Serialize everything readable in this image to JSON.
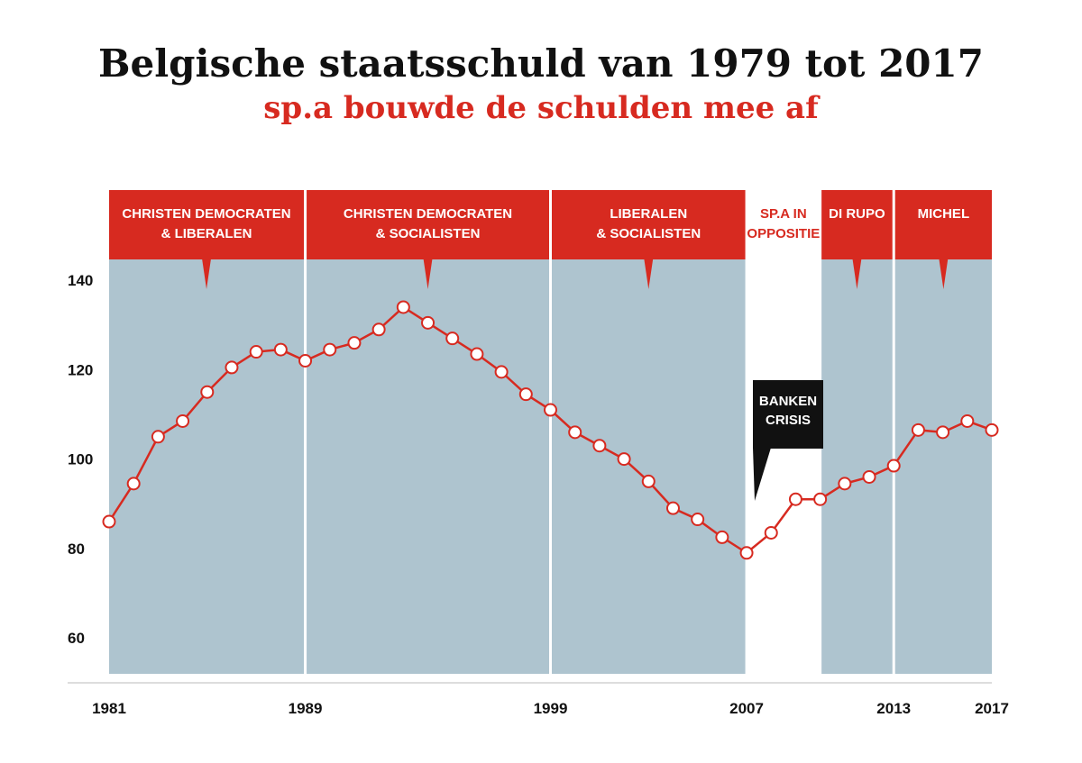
{
  "title": "Belgische staatsschuld van 1979 tot 2017",
  "subtitle": "sp.a bouwde de schulden mee af",
  "colors": {
    "shade": "#aec4cf",
    "red": "#d72a20",
    "black": "#111111"
  },
  "chart_data": {
    "type": "line",
    "title": "Belgische staatsschuld van 1979 tot 2017",
    "subtitle": "sp.a bouwde de schulden mee af",
    "xlabel": "",
    "ylabel": "",
    "xlim": [
      1981,
      2017
    ],
    "ylim": [
      52,
      148
    ],
    "yticks": [
      60,
      80,
      100,
      120,
      140
    ],
    "xticks": [
      "1981",
      "1989",
      "1999",
      "2007",
      "2013",
      "2017"
    ],
    "grid": false,
    "series": [
      {
        "color": "#d72a20",
        "x": [
          1981,
          1982,
          1983,
          1984,
          1985,
          1986,
          1987,
          1988,
          1989,
          1990,
          1991,
          1992,
          1993,
          1994,
          1995,
          1996,
          1997,
          1998,
          1999,
          2000,
          2001,
          2002,
          2003,
          2004,
          2005,
          2006,
          2007,
          2008,
          2009,
          2010,
          2011,
          2012,
          2013,
          2014,
          2015,
          2016,
          2017
        ],
        "y": [
          86,
          94.5,
          105,
          108.5,
          115,
          120.5,
          124,
          124.5,
          122,
          124.5,
          126,
          129,
          134,
          130.5,
          127,
          123.5,
          119.5,
          114.5,
          111,
          106,
          103,
          100,
          95,
          89,
          86.5,
          82.5,
          79,
          83.5,
          91,
          91,
          94.5,
          96,
          98.5,
          106.5,
          106,
          108.5,
          106.5
        ]
      }
    ],
    "periods": [
      {
        "label_lines": [
          "CHRISTEN DEMOCRATEN",
          "& LIBERALEN"
        ],
        "from": 1981,
        "to": 1989,
        "shaded": true
      },
      {
        "label_lines": [
          "CHRISTEN DEMOCRATEN",
          "& SOCIALISTEN"
        ],
        "from": 1989,
        "to": 1999,
        "shaded": true
      },
      {
        "label_lines": [
          "LIBERALEN",
          "& SOCIALISTEN"
        ],
        "from": 1999,
        "to": 2007,
        "shaded": true
      },
      {
        "label_lines": [
          "SP.A IN",
          "OPPOSITIE"
        ],
        "from": 2007,
        "to": 2010,
        "shaded": false
      },
      {
        "label_lines": [
          "DI RUPO"
        ],
        "from": 2010,
        "to": 2013,
        "shaded": true
      },
      {
        "label_lines": [
          "MICHEL"
        ],
        "from": 2013,
        "to": 2017,
        "shaded": true
      }
    ],
    "annotations": [
      {
        "label_lines": [
          "BANKEN",
          "CRISIS"
        ]
      }
    ]
  }
}
